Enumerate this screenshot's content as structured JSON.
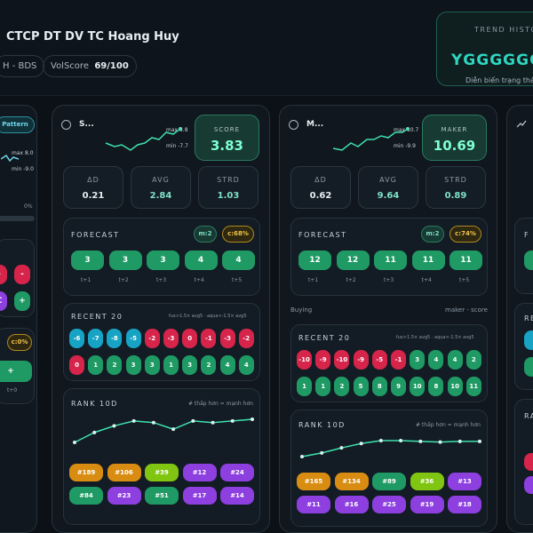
{
  "header": {
    "title": "CTCP DT DV TC Hoang Huy",
    "chip_sector": "H - BDS",
    "vol_label": "VolScore",
    "vol_value": "69/100",
    "trend_label": "TREND HISTO",
    "trend_value": "YGGGGGG",
    "trend_sub": "Diễn biến trạng thái"
  },
  "left_partial": {
    "pattern_label": "Pattern",
    "max": "max 8.0",
    "min": "min -9.0",
    "pct": "0%",
    "pills": [
      "-",
      "-",
      "C",
      "+"
    ],
    "c_badge": "c:0%",
    "plus": "+",
    "t_label": "t+0"
  },
  "cards": [
    {
      "title": "S...",
      "spark_max": "max 3.8",
      "spark_min": "min -7.7",
      "score_label": "SCORE",
      "score_value": "3.83",
      "stats": [
        {
          "k": "ΔD",
          "v": "0.21"
        },
        {
          "k": "AVG",
          "v": "2.84"
        },
        {
          "k": "STRD",
          "v": "1.03"
        }
      ],
      "forecast_label": "FORECAST",
      "m_badge": "m:2",
      "c_badge": "c:68%",
      "forecast": [
        "3",
        "3",
        "3",
        "4",
        "4"
      ],
      "forecast_t": [
        "t+1",
        "t+2",
        "t+3",
        "t+4",
        "t+5"
      ],
      "mid_left": "",
      "mid_right": "",
      "recent_label": "RECENT 20",
      "recent_legend": "fux>1.5× avg5 · aqua<-1.5× avg5",
      "recent_row1": [
        "-6",
        "-7",
        "-8",
        "-5",
        "-2",
        "-3",
        "0",
        "-1",
        "-3",
        "-2"
      ],
      "recent_row1_c": [
        "c",
        "c",
        "c",
        "c",
        "r",
        "r",
        "r",
        "r",
        "r",
        "r"
      ],
      "recent_row2": [
        "0",
        "1",
        "2",
        "3",
        "3",
        "1",
        "3",
        "2",
        "4",
        "4"
      ],
      "recent_row2_c": [
        "r",
        "g",
        "g",
        "g",
        "g",
        "g",
        "g",
        "g",
        "g",
        "g"
      ],
      "rank_label": "RANK 10D",
      "rank_legend": "# thấp hơn = mạnh hơn",
      "rank_vals": [
        35,
        29,
        25,
        22,
        23,
        27,
        22,
        23,
        22,
        21
      ],
      "rank_row1": [
        "#189",
        "#106",
        "#39",
        "#12",
        "#24"
      ],
      "rank_row1_c": [
        "o",
        "o",
        "l",
        "p",
        "p"
      ],
      "rank_row2": [
        "#84",
        "#23",
        "#51",
        "#17",
        "#14"
      ],
      "rank_row2_c": [
        "g",
        "p",
        "g",
        "p",
        "p"
      ]
    },
    {
      "title": "M...",
      "spark_max": "max 10.7",
      "spark_min": "min -9.9",
      "score_label": "MAKER",
      "score_value": "10.69",
      "stats": [
        {
          "k": "ΔD",
          "v": "0.62"
        },
        {
          "k": "AVG",
          "v": "9.64"
        },
        {
          "k": "STRD",
          "v": "0.89"
        }
      ],
      "forecast_label": "FORECAST",
      "m_badge": "m:2",
      "c_badge": "c:74%",
      "forecast": [
        "12",
        "12",
        "11",
        "11",
        "11"
      ],
      "forecast_t": [
        "t+1",
        "t+2",
        "t+3",
        "t+4",
        "t+5"
      ],
      "mid_left": "Buying",
      "mid_right": "maker - score",
      "recent_label": "RECENT 20",
      "recent_legend": "fux>1.5× avg5 · aqua<-1.5× avg5",
      "recent_row1": [
        "-10",
        "-9",
        "-10",
        "-9",
        "-5",
        "-1",
        "3",
        "4",
        "4",
        "2"
      ],
      "recent_row1_c": [
        "r",
        "r",
        "r",
        "r",
        "r",
        "r",
        "g",
        "g",
        "g",
        "g"
      ],
      "recent_row2": [
        "1",
        "1",
        "2",
        "5",
        "8",
        "9",
        "10",
        "8",
        "10",
        "11"
      ],
      "recent_row2_c": [
        "g",
        "g",
        "g",
        "g",
        "g",
        "g",
        "g",
        "g",
        "g",
        "g"
      ],
      "rank_label": "RANK 10D",
      "rank_legend": "# thấp hơn = mạnh hơn",
      "rank_vals": [
        60,
        55,
        48,
        42,
        38,
        38,
        39,
        40,
        39,
        39
      ],
      "rank_row1": [
        "#165",
        "#134",
        "#89",
        "#36",
        "#13"
      ],
      "rank_row1_c": [
        "o",
        "o",
        "g",
        "l",
        "p"
      ],
      "rank_row2": [
        "#11",
        "#16",
        "#25",
        "#19",
        "#18"
      ],
      "rank_row2_c": [
        "p",
        "p",
        "p",
        "p",
        "p"
      ]
    }
  ],
  "right_partial": {
    "f_label": "F",
    "re_label": "RE",
    "ra_label": "RA"
  }
}
